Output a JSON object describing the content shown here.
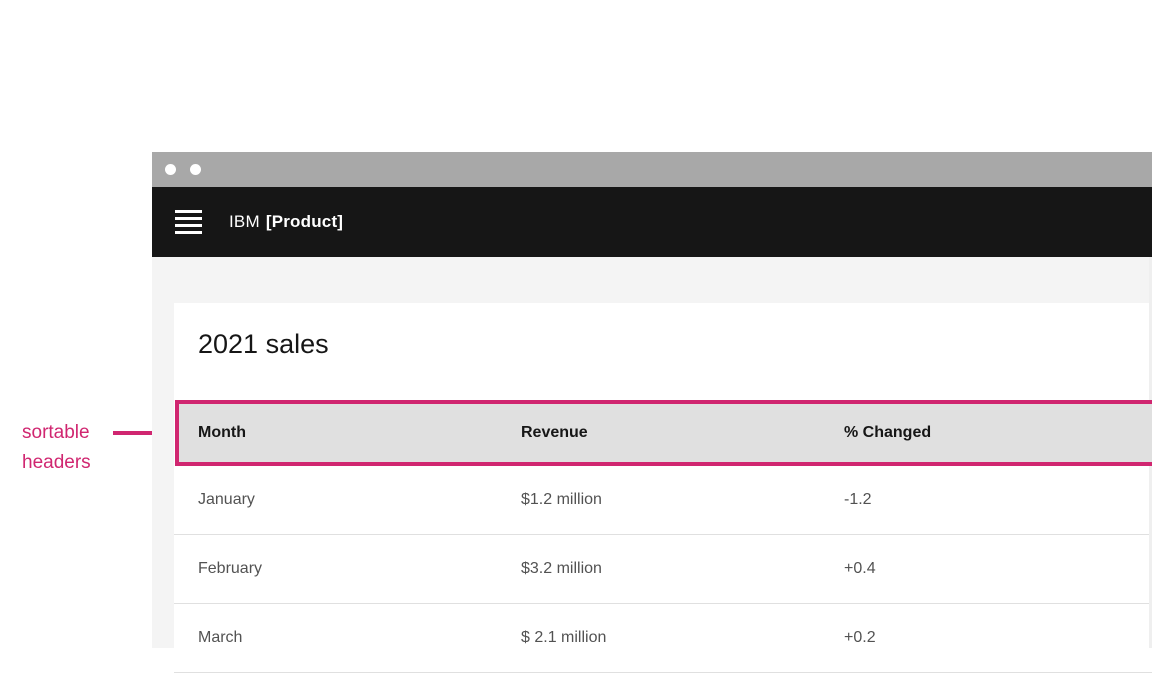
{
  "annotation": {
    "label": "sortable headers"
  },
  "browser": {
    "window_controls": {
      "dot_count": 2
    },
    "header": {
      "brand_prefix": "IBM",
      "brand_product": "[Product]"
    }
  },
  "page": {
    "title": "2021 sales",
    "table": {
      "columns": [
        "Month",
        "Revenue",
        "% Changed"
      ],
      "rows": [
        [
          "January",
          "$1.2 million",
          "-1.2"
        ],
        [
          "February",
          "$3.2 million",
          "+0.4"
        ],
        [
          "March",
          "$ 2.1 million",
          "+0.2"
        ]
      ]
    }
  },
  "colors": {
    "annotation_accent": "#d02670",
    "titlebar_bg": "#a8a8a8",
    "appbar_bg": "#161616",
    "page_bg": "#f4f4f4",
    "card_bg": "#ffffff",
    "table_header_bg": "#e0e0e0",
    "header_text": "#161616",
    "row_text": "#525252",
    "row_divider": "#e0e0e0"
  }
}
